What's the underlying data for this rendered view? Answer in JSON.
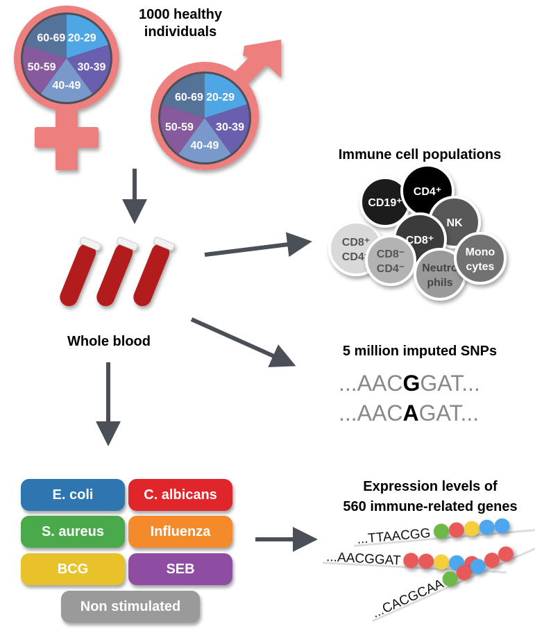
{
  "title": "1000 healthy individuals",
  "title_lines": [
    "1000 healthy",
    "individuals"
  ],
  "age_groups": [
    {
      "label": "20-29",
      "color": "#4ea6e4"
    },
    {
      "label": "30-39",
      "color": "#6a5fae"
    },
    {
      "label": "40-49",
      "color": "#7899c9"
    },
    {
      "label": "50-59",
      "color": "#865a9c"
    },
    {
      "label": "60-69",
      "color": "#557399"
    }
  ],
  "symbol_color": "#ee7f7f",
  "arrow_color": "#4a4f58",
  "whole_blood": "Whole blood",
  "immune": {
    "title": "Immune cell populations",
    "cells": [
      {
        "l1": "CD8⁺",
        "l2": "CD4⁺",
        "fill": "#d9d9d9",
        "text": "#555"
      },
      {
        "l1": "CD19⁺",
        "l2": "",
        "fill": "#1f1f1f",
        "text": "#fff"
      },
      {
        "l1": "CD4⁺",
        "l2": "",
        "fill": "#000000",
        "text": "#fff"
      },
      {
        "l1": "NK",
        "l2": "",
        "fill": "#595959",
        "text": "#fff"
      },
      {
        "l1": "CD8⁺",
        "l2": "",
        "fill": "#3a3a3a",
        "text": "#fff"
      },
      {
        "l1": "CD8⁻",
        "l2": "CD4⁻",
        "fill": "#b3b3b3",
        "text": "#555"
      },
      {
        "l1": "Neutro",
        "l2": "phils",
        "fill": "#9a9a9a",
        "text": "#444"
      },
      {
        "l1": "Mono",
        "l2": "cytes",
        "fill": "#727272",
        "text": "#fff"
      }
    ]
  },
  "snps": {
    "title": "5 million imputed SNPs",
    "rows": [
      {
        "pre": "...AAC",
        "allele": "G",
        "post": "GAT..."
      },
      {
        "pre": "...AAC",
        "allele": "A",
        "post": "GAT..."
      }
    ]
  },
  "stimuli": [
    {
      "label": "E. coli",
      "color": "#2e76b0"
    },
    {
      "label": "C. albicans",
      "color": "#e0262a"
    },
    {
      "label": "S. aureus",
      "color": "#4aa94a"
    },
    {
      "label": "Influenza",
      "color": "#f58a2a"
    },
    {
      "label": "BCG",
      "color": "#e8c22a"
    },
    {
      "label": "SEB",
      "color": "#8e4da0"
    },
    {
      "label": "Non stimulated",
      "color": "#9a9a9a"
    }
  ],
  "expression": {
    "title_lines": [
      "Expression levels of",
      "560 immune-related genes"
    ],
    "rows": [
      {
        "seq": "...TTAACGG",
        "beads": [
          "#6cb84a",
          "#e85a5a",
          "#f2cf3a",
          "#4ea6ee",
          "#4ea6ee"
        ]
      },
      {
        "seq": "...AACGGAT",
        "beads": [
          "#e85a5a",
          "#e85a5a",
          "#f2cf3a",
          "#4ea6ee",
          "#e85a5a"
        ]
      },
      {
        "seq": "...CACGCAA",
        "beads": [
          "#6cb84a",
          "#e85a5a",
          "#4ea6ee",
          "#e85a5a",
          "#e85a5a"
        ]
      }
    ]
  }
}
